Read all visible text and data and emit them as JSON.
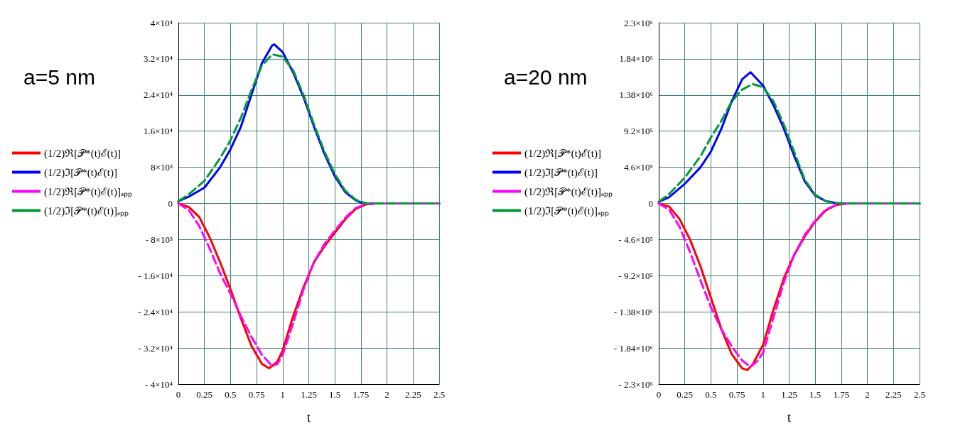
{
  "chart_data": [
    {
      "type": "line",
      "title": "a=5 nm",
      "xlabel": "t",
      "xlim": [
        0,
        2.5
      ],
      "xticks": [
        0,
        0.25,
        0.5,
        0.75,
        1,
        1.25,
        1.5,
        1.75,
        2,
        2.25,
        2.5
      ],
      "ylim": [
        -40000,
        40000
      ],
      "yticks": [
        {
          "value": -40000,
          "label": "- 4×10⁴"
        },
        {
          "value": -32000,
          "label": "- 3.2×10⁴"
        },
        {
          "value": -24000,
          "label": "- 2.4×10⁴"
        },
        {
          "value": -16000,
          "label": "- 1.6×10⁴"
        },
        {
          "value": -8000,
          "label": "- 8×10³"
        },
        0,
        {
          "value": 8000,
          "label": "8×10³"
        },
        {
          "value": 16000,
          "label": "1.6×10⁴"
        },
        {
          "value": 24000,
          "label": "2.4×10⁴"
        },
        {
          "value": 32000,
          "label": "3.2×10⁴"
        },
        {
          "value": 40000,
          "label": "4×10⁴"
        }
      ],
      "grid": true,
      "legend": "left",
      "marker": "none",
      "series": [
        {
          "name": "(1/2)ℜ[𝒫*(t)ℰ(t)]",
          "color": "#ff0000",
          "line_style": "solid",
          "x": [
            0,
            0.1,
            0.2,
            0.3,
            0.4,
            0.5,
            0.6,
            0.7,
            0.8,
            0.87,
            0.95,
            1.0,
            1.1,
            1.2,
            1.3,
            1.4,
            1.5,
            1.6,
            1.7,
            1.8,
            1.9,
            2.5
          ],
          "values": [
            0,
            -800,
            -3000,
            -7500,
            -13000,
            -19000,
            -25500,
            -31500,
            -35500,
            -36500,
            -35000,
            -32500,
            -25000,
            -18500,
            -13000,
            -9500,
            -6500,
            -3500,
            -1200,
            -200,
            0,
            0
          ]
        },
        {
          "name": "(1/2)ℑ[𝒫*(t)ℰ(t)]",
          "color": "#0000ff",
          "line_style": "solid",
          "x": [
            0,
            0.1,
            0.25,
            0.4,
            0.5,
            0.6,
            0.7,
            0.8,
            0.9,
            0.92,
            1.0,
            1.1,
            1.2,
            1.3,
            1.4,
            1.5,
            1.6,
            1.7,
            1.75,
            1.8,
            2.5
          ],
          "values": [
            500,
            1500,
            3500,
            8000,
            12000,
            17000,
            24000,
            31000,
            35000,
            35200,
            33500,
            29000,
            23500,
            17000,
            11000,
            6000,
            2500,
            700,
            200,
            0,
            0
          ]
        },
        {
          "name": "(1/2)ℜ[𝒫*(t)ℰ(t)]ₐₚₚ",
          "color": "#ff00ff",
          "line_style": "dashed",
          "x": [
            0,
            0.1,
            0.2,
            0.3,
            0.4,
            0.5,
            0.6,
            0.7,
            0.8,
            0.9,
            0.95,
            1.0,
            1.1,
            1.2,
            1.3,
            1.4,
            1.5,
            1.6,
            1.7,
            1.8,
            1.9,
            2.5
          ],
          "values": [
            0,
            -1500,
            -5000,
            -10000,
            -15500,
            -20000,
            -25000,
            -29500,
            -33500,
            -36000,
            -35500,
            -33500,
            -26500,
            -19000,
            -13000,
            -9000,
            -6000,
            -3200,
            -1000,
            -200,
            0,
            0
          ]
        },
        {
          "name": "(1/2)ℑ[𝒫*(t)ℰ(t)]ₐₚₚ",
          "color": "#009933",
          "line_style": "dashed",
          "x": [
            0,
            0.1,
            0.25,
            0.4,
            0.5,
            0.6,
            0.7,
            0.8,
            0.9,
            1.0,
            1.1,
            1.2,
            1.3,
            1.4,
            1.5,
            1.6,
            1.7,
            1.8,
            2.5
          ],
          "values": [
            500,
            2000,
            5000,
            10000,
            14000,
            19000,
            25000,
            30500,
            33000,
            32500,
            29500,
            24000,
            17500,
            11500,
            6500,
            2800,
            800,
            0,
            0
          ]
        }
      ]
    },
    {
      "type": "line",
      "title": "a=20 nm",
      "xlabel": "t",
      "xlim": [
        0,
        2.5
      ],
      "xticks": [
        0,
        0.25,
        0.5,
        0.75,
        1,
        1.25,
        1.5,
        1.75,
        2,
        2.25,
        2.5
      ],
      "ylim": [
        -2300000,
        2300000
      ],
      "yticks": [
        {
          "value": -2300000,
          "label": "- 2.3×10⁶"
        },
        {
          "value": -1840000,
          "label": "- 1.84×10⁶"
        },
        {
          "value": -1380000,
          "label": "- 1.38×10⁶"
        },
        {
          "value": -920000,
          "label": "- 9.2×10⁵"
        },
        {
          "value": -460000,
          "label": "- 4.6×10⁵"
        },
        0,
        {
          "value": 460000,
          "label": "4.6×10⁵"
        },
        {
          "value": 920000,
          "label": "9.2×10⁵"
        },
        {
          "value": 1380000,
          "label": "1.38×10⁶"
        },
        {
          "value": 1840000,
          "label": "1.84×10⁶"
        },
        {
          "value": 2300000,
          "label": "2.3×10⁶"
        }
      ],
      "grid": true,
      "legend": "left",
      "marker": "none",
      "series": [
        {
          "name": "(1/2)ℜ[𝒫*(t)ℰ(t)]",
          "color": "#ff0000",
          "line_style": "solid",
          "x": [
            0,
            0.1,
            0.2,
            0.3,
            0.4,
            0.5,
            0.6,
            0.7,
            0.8,
            0.85,
            0.9,
            1.0,
            1.1,
            1.2,
            1.3,
            1.4,
            1.5,
            1.6,
            1.7,
            1.8,
            2.5
          ],
          "values": [
            0,
            -40000,
            -200000,
            -460000,
            -800000,
            -1200000,
            -1600000,
            -1920000,
            -2100000,
            -2120000,
            -2050000,
            -1800000,
            -1350000,
            -950000,
            -650000,
            -420000,
            -230000,
            -90000,
            -20000,
            0,
            0
          ]
        },
        {
          "name": "(1/2)ℑ[𝒫*(t)ℰ(t)]",
          "color": "#0000ff",
          "line_style": "solid",
          "x": [
            0,
            0.1,
            0.25,
            0.4,
            0.5,
            0.6,
            0.7,
            0.8,
            0.88,
            1.0,
            1.1,
            1.2,
            1.3,
            1.4,
            1.5,
            1.6,
            1.7,
            1.8,
            2.5
          ],
          "values": [
            20000,
            80000,
            250000,
            460000,
            660000,
            950000,
            1300000,
            1580000,
            1670000,
            1500000,
            1250000,
            950000,
            600000,
            280000,
            100000,
            30000,
            5000,
            0,
            0
          ]
        },
        {
          "name": "(1/2)ℜ[𝒫*(t)ℰ(t)]ₐₚₚ",
          "color": "#ff00ff",
          "line_style": "dashed",
          "x": [
            0,
            0.1,
            0.2,
            0.3,
            0.4,
            0.5,
            0.6,
            0.7,
            0.8,
            0.88,
            0.95,
            1.0,
            1.1,
            1.2,
            1.3,
            1.4,
            1.5,
            1.6,
            1.7,
            1.8,
            2.5
          ],
          "values": [
            0,
            -80000,
            -300000,
            -620000,
            -980000,
            -1320000,
            -1600000,
            -1820000,
            -2000000,
            -2080000,
            -2000000,
            -1900000,
            -1450000,
            -1000000,
            -650000,
            -400000,
            -220000,
            -80000,
            -20000,
            0,
            0
          ]
        },
        {
          "name": "(1/2)ℑ[𝒫*(t)ℰ(t)]ₐₚₚ",
          "color": "#009933",
          "line_style": "dashed",
          "x": [
            0,
            0.1,
            0.25,
            0.4,
            0.5,
            0.6,
            0.7,
            0.8,
            0.9,
            1.0,
            1.1,
            1.2,
            1.3,
            1.4,
            1.5,
            1.6,
            1.7,
            1.8,
            2.5
          ],
          "values": [
            20000,
            120000,
            330000,
            600000,
            840000,
            1050000,
            1300000,
            1450000,
            1520000,
            1480000,
            1300000,
            1000000,
            650000,
            300000,
            110000,
            30000,
            5000,
            0,
            0
          ]
        }
      ]
    }
  ]
}
